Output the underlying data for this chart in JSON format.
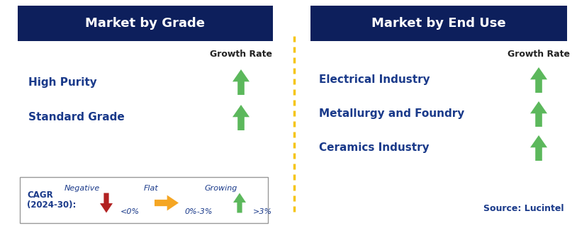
{
  "bg_color": "#ffffff",
  "header_bg": "#0d1f5c",
  "header_text_color": "#ffffff",
  "label_color": "#1a3a8a",
  "growth_rate_color": "#222222",
  "source_color": "#1a3a8a",
  "dashed_line_color": "#f5c518",
  "left_header": "Market by Grade",
  "right_header": "Market by End Use",
  "left_items": [
    "High Purity",
    "Standard Grade"
  ],
  "right_items": [
    "Electrical Industry",
    "Metallurgy and Foundry",
    "Ceramics Industry"
  ],
  "legend_label_line1": "CAGR",
  "legend_label_line2": "(2024-30):",
  "legend_negative": "Negative",
  "legend_negative_range": "<0%",
  "legend_flat": "Flat",
  "legend_flat_range": "0%-3%",
  "legend_growing": "Growing",
  "legend_growing_range": ">3%",
  "source_text": "Source: Lucintel",
  "green_arrow_color": "#5cb85c",
  "red_arrow_color": "#b22222",
  "orange_arrow_color": "#f5a623"
}
